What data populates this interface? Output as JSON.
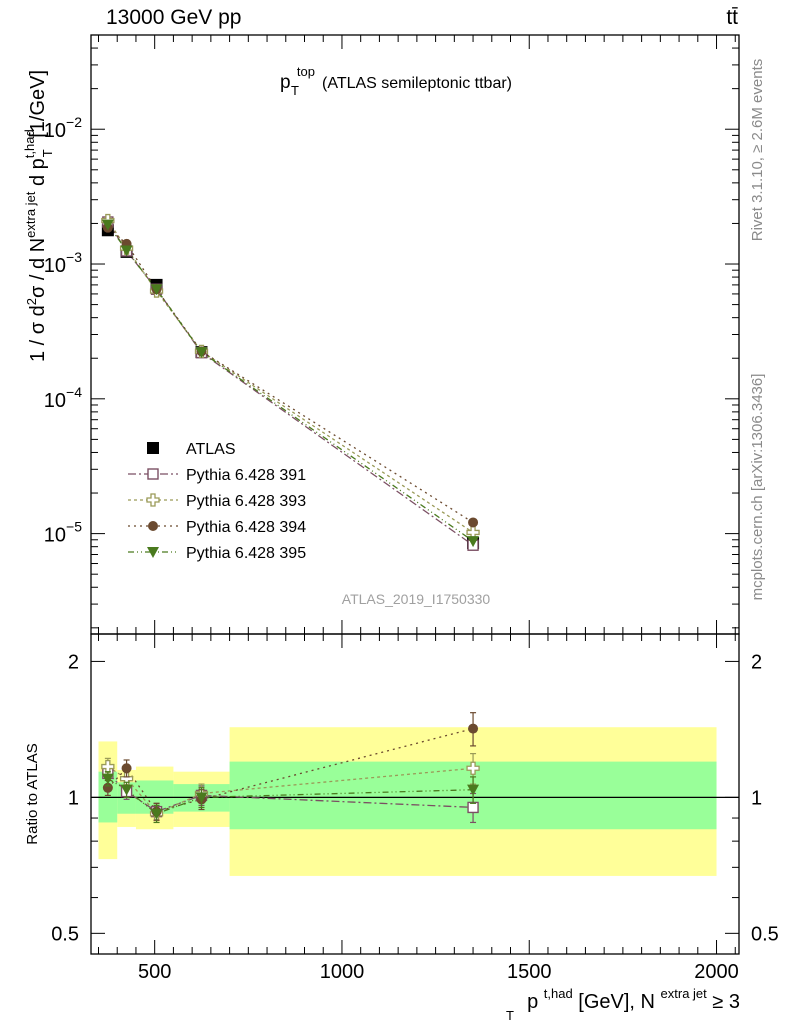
{
  "header": {
    "left": "13000 GeV pp",
    "right": "tt̄"
  },
  "side_labels": {
    "rivet": "Rivet 3.1.10, ≥ 2.6M events",
    "mcplots": "mcplots.cern.ch [arXiv:1306.3436]"
  },
  "chart_data": [
    {
      "type": "scatter",
      "panel": "main",
      "title_main": "p",
      "title_sup": "top",
      "title_sub": "T",
      "title_rest": "(ATLAS semileptonic ttbar)",
      "ylabel": "1 / σ d²σ / d N^{extra jet} d p_T^{t,had} [1/GeV]",
      "y_scale": "log",
      "ylim": [
        1.8e-06,
        0.05
      ],
      "y_ticks": [
        {
          "v": 0.01,
          "base": "10",
          "exp": "−2"
        },
        {
          "v": 0.001,
          "base": "10",
          "exp": "−3"
        },
        {
          "v": 0.0001,
          "base": "10",
          "exp": "−4"
        },
        {
          "v": 1e-05,
          "base": "10",
          "exp": "−5"
        }
      ],
      "watermark": "ATLAS_2019_I1750330",
      "legend_position": "bottom-left",
      "x": [
        375,
        425,
        505,
        625,
        1350
      ],
      "series": [
        {
          "name": "ATLAS",
          "color": "#000000",
          "marker": "filled-square",
          "values": [
            0.00178,
            0.00123,
            0.0007,
            0.000222,
            8.5e-06
          ]
        },
        {
          "name": "Pythia 6.428 391",
          "color": "#7b4f63",
          "marker": "open-square",
          "dash": "8,3,2,3",
          "values": [
            0.00205,
            0.00125,
            0.00065,
            0.00022,
            8.2e-06
          ]
        },
        {
          "name": "Pythia 6.428 393",
          "color": "#9a9a58",
          "marker": "open-cross",
          "dash": "3,3",
          "values": [
            0.0021,
            0.00131,
            0.00063,
            0.000225,
            1.02e-05
          ]
        },
        {
          "name": "Pythia 6.428 394",
          "color": "#6b4a2f",
          "marker": "filled-circle",
          "dash": "2,4",
          "values": [
            0.00186,
            0.00141,
            0.00065,
            0.000225,
            1.21e-05
          ]
        },
        {
          "name": "Pythia 6.428 395",
          "color": "#4a7a1e",
          "marker": "filled-triangle-down",
          "dash": "6,3,1,3,1,3",
          "values": [
            0.00196,
            0.00126,
            0.00065,
            0.000222,
            8.8e-06
          ]
        }
      ]
    },
    {
      "type": "scatter",
      "panel": "ratio",
      "ylabel": "Ratio to ATLAS",
      "y_scale": "log",
      "ylim": [
        0.45,
        2.3
      ],
      "y_ticks": [
        0.5,
        1,
        2
      ],
      "y_tick_labels": [
        "0.5",
        "1",
        "2"
      ],
      "xlim": [
        330,
        2060
      ],
      "x_ticks": [
        500,
        1000,
        1500,
        2000
      ],
      "x_tick_labels": [
        "500",
        "1000",
        "1500",
        "2000"
      ],
      "xlabel_main": "p",
      "xlabel_sup": "t,had",
      "xlabel_sub": "T",
      "xlabel_rest": " [GeV], N",
      "xlabel_sup2": "extra jet",
      "xlabel_end": " ≥ 3",
      "bands": [
        {
          "x0": 350,
          "x1": 400,
          "green": [
            0.88,
            1.14
          ],
          "yellow": [
            0.73,
            1.33
          ]
        },
        {
          "x0": 400,
          "x1": 450,
          "green": [
            0.92,
            1.08
          ],
          "yellow": [
            0.86,
            1.15
          ]
        },
        {
          "x0": 450,
          "x1": 550,
          "green": [
            0.92,
            1.09
          ],
          "yellow": [
            0.85,
            1.17
          ]
        },
        {
          "x0": 550,
          "x1": 700,
          "green": [
            0.93,
            1.07
          ],
          "yellow": [
            0.86,
            1.14
          ]
        },
        {
          "x0": 700,
          "x1": 2000,
          "green": [
            0.85,
            1.2
          ],
          "yellow": [
            0.67,
            1.43
          ]
        }
      ],
      "x": [
        375,
        425,
        505,
        625,
        1350
      ],
      "series": [
        {
          "name": "Pythia 6.428 391",
          "color": "#7b4f63",
          "marker": "open-square",
          "dash": "8,3,2,3",
          "values": [
            1.13,
            1.03,
            0.93,
            1.01,
            0.95
          ],
          "err": [
            0.04,
            0.04,
            0.04,
            0.05,
            0.07
          ]
        },
        {
          "name": "Pythia 6.428 393",
          "color": "#9a9a58",
          "marker": "open-cross",
          "dash": "3,3",
          "values": [
            1.17,
            1.1,
            0.92,
            1.02,
            1.16
          ],
          "err": [
            0.05,
            0.04,
            0.04,
            0.05,
            0.09
          ]
        },
        {
          "name": "Pythia 6.428 394",
          "color": "#6b4a2f",
          "marker": "filled-circle",
          "dash": "2,4",
          "values": [
            1.05,
            1.16,
            0.93,
            0.99,
            1.42
          ],
          "err": [
            0.04,
            0.05,
            0.04,
            0.05,
            0.12
          ]
        },
        {
          "name": "Pythia 6.428 395",
          "color": "#4a7a1e",
          "marker": "filled-triangle-down",
          "dash": "6,3,1,3,1,3",
          "values": [
            1.1,
            1.04,
            0.92,
            1.0,
            1.04
          ],
          "err": [
            0.04,
            0.04,
            0.04,
            0.05,
            0.07
          ]
        }
      ]
    }
  ]
}
